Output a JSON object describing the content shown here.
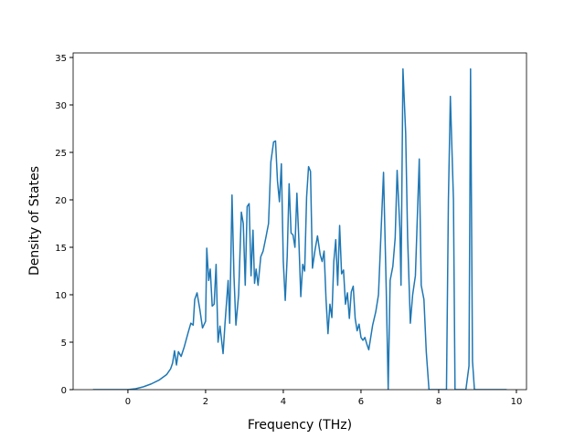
{
  "chart_data": {
    "type": "line",
    "xlabel": "Frequency (THz)",
    "ylabel": "Density of States",
    "xlim": [
      -1.41,
      10.26
    ],
    "ylim": [
      0,
      35.48
    ],
    "xticks": [
      0,
      2,
      4,
      6,
      8,
      10
    ],
    "yticks": [
      0,
      5,
      10,
      15,
      20,
      25,
      30,
      35
    ],
    "series": [
      {
        "color": "#1f77b4",
        "x": [
          -0.9,
          0,
          0.2,
          0.4,
          0.6,
          0.8,
          1.0,
          1.1,
          1.15,
          1.2,
          1.25,
          1.3,
          1.37,
          1.45,
          1.55,
          1.62,
          1.68,
          1.72,
          1.78,
          1.85,
          1.92,
          2.0,
          2.03,
          2.08,
          2.12,
          2.17,
          2.22,
          2.27,
          2.32,
          2.37,
          2.45,
          2.5,
          2.58,
          2.62,
          2.68,
          2.73,
          2.78,
          2.85,
          2.92,
          2.97,
          3.02,
          3.07,
          3.12,
          3.17,
          3.22,
          3.26,
          3.3,
          3.35,
          3.42,
          3.48,
          3.55,
          3.62,
          3.68,
          3.75,
          3.8,
          3.85,
          3.9,
          3.95,
          4.0,
          4.05,
          4.1,
          4.15,
          4.2,
          4.25,
          4.3,
          4.35,
          4.4,
          4.45,
          4.5,
          4.55,
          4.6,
          4.65,
          4.7,
          4.75,
          4.82,
          4.88,
          4.95,
          5.0,
          5.05,
          5.1,
          5.15,
          5.2,
          5.25,
          5.3,
          5.35,
          5.4,
          5.45,
          5.5,
          5.55,
          5.6,
          5.65,
          5.7,
          5.75,
          5.8,
          5.85,
          5.9,
          5.95,
          6.0,
          6.05,
          6.1,
          6.15,
          6.2,
          6.25,
          6.3,
          6.38,
          6.45,
          6.52,
          6.58,
          6.65,
          6.7,
          6.75,
          6.82,
          6.88,
          6.93,
          7.0,
          7.03,
          7.08,
          7.15,
          7.2,
          7.27,
          7.33,
          7.4,
          7.5,
          7.55,
          7.62,
          7.68,
          7.75,
          8.2,
          8.25,
          8.3,
          8.38,
          8.42,
          8.7,
          8.78,
          8.82,
          8.87,
          8.92,
          9.75
        ],
        "values": [
          0,
          0,
          0.1,
          0.3,
          0.6,
          1.0,
          1.6,
          2.2,
          2.8,
          4.1,
          2.6,
          4.0,
          3.5,
          4.5,
          6.0,
          7.0,
          6.8,
          9.5,
          10.2,
          8.5,
          6.5,
          7.2,
          14.9,
          11.5,
          12.7,
          8.8,
          9.0,
          13.2,
          5.0,
          6.7,
          3.8,
          7.0,
          11.5,
          7.0,
          20.5,
          12.0,
          6.8,
          10.0,
          18.7,
          17.5,
          11.0,
          19.3,
          19.6,
          12.0,
          16.8,
          11.2,
          12.7,
          11.0,
          14.0,
          14.6,
          16.0,
          17.5,
          24.0,
          26.1,
          26.2,
          22.0,
          19.8,
          23.8,
          13.5,
          9.4,
          14.0,
          21.7,
          16.5,
          16.3,
          15.0,
          20.7,
          15.8,
          9.8,
          13.2,
          12.5,
          20.3,
          23.5,
          23.0,
          12.8,
          14.8,
          16.2,
          14.2,
          13.5,
          14.6,
          9.5,
          5.9,
          9.0,
          7.6,
          13.5,
          15.8,
          11.0,
          17.3,
          12.2,
          12.6,
          9.0,
          10.2,
          7.5,
          10.3,
          10.9,
          7.5,
          6.2,
          6.9,
          5.5,
          5.2,
          5.5,
          4.8,
          4.2,
          5.5,
          6.8,
          8.2,
          10.0,
          17.0,
          22.9,
          10.5,
          0,
          11.5,
          13.0,
          16.0,
          23.1,
          17.0,
          11.0,
          33.8,
          27.0,
          16.0,
          7.0,
          10.0,
          12.0,
          24.3,
          11.0,
          9.5,
          4.0,
          0,
          0,
          20.0,
          30.9,
          20.0,
          0,
          0,
          2.5,
          33.8,
          3.0,
          0,
          0
        ]
      }
    ]
  }
}
